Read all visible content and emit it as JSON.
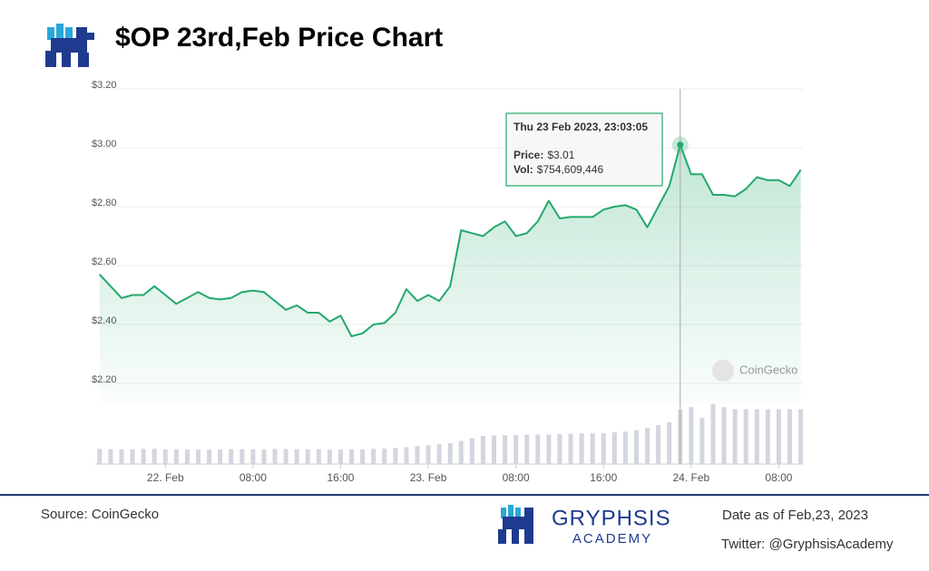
{
  "chart_data": {
    "type": "line",
    "title": "$OP 23rd,Feb Price Chart",
    "x": [
      -6,
      -5,
      -4,
      -3,
      -2,
      -1,
      0,
      1,
      2,
      3,
      4,
      5,
      6,
      7,
      8,
      9,
      10,
      11,
      12,
      13,
      14,
      15,
      16,
      17,
      18,
      19,
      20,
      21,
      22,
      23,
      24,
      25,
      26,
      27,
      28,
      29,
      30,
      31,
      32,
      33,
      34,
      35,
      36,
      37,
      38,
      39,
      40,
      41,
      42,
      43,
      44,
      45,
      46,
      47,
      48,
      49,
      50,
      51,
      52,
      53,
      54,
      55,
      56,
      57,
      58
    ],
    "values": [
      2.57,
      2.53,
      2.49,
      2.5,
      2.5,
      2.53,
      2.5,
      2.47,
      2.49,
      2.51,
      2.49,
      2.485,
      2.49,
      2.51,
      2.515,
      2.51,
      2.48,
      2.45,
      2.465,
      2.44,
      2.44,
      2.41,
      2.43,
      2.36,
      2.37,
      2.4,
      2.405,
      2.44,
      2.52,
      2.48,
      2.5,
      2.48,
      2.53,
      2.72,
      2.71,
      2.7,
      2.73,
      2.75,
      2.7,
      2.71,
      2.75,
      2.82,
      2.76,
      2.765,
      2.765,
      2.765,
      2.79,
      2.8,
      2.805,
      2.79,
      2.73,
      2.8,
      2.87,
      3.01,
      2.91,
      2.91,
      2.84,
      2.84,
      2.835,
      2.86,
      2.9,
      2.89,
      2.89,
      2.87,
      2.925
    ],
    "volume": [
      210000000,
      205000000,
      205000000,
      205000000,
      210000000,
      210000000,
      205000000,
      205000000,
      200000000,
      200000000,
      200000000,
      200000000,
      205000000,
      205000000,
      205000000,
      205000000,
      210000000,
      210000000,
      205000000,
      205000000,
      205000000,
      200000000,
      200000000,
      205000000,
      205000000,
      210000000,
      215000000,
      225000000,
      235000000,
      250000000,
      260000000,
      275000000,
      290000000,
      320000000,
      360000000,
      390000000,
      395000000,
      400000000,
      400000000,
      405000000,
      410000000,
      410000000,
      415000000,
      420000000,
      425000000,
      425000000,
      430000000,
      440000000,
      450000000,
      470000000,
      500000000,
      540000000,
      580000000,
      754609446,
      790000000,
      640000000,
      830000000,
      790000000,
      760000000,
      760000000,
      760000000,
      760000000,
      760000000,
      760000000,
      760000000
    ],
    "color": "#23a86b",
    "volume_color": "#d3d6de",
    "xlim": [
      -6.4,
      58.2
    ],
    "xticks": [
      {
        "value": 0,
        "label": "22. Feb"
      },
      {
        "value": 8,
        "label": "08:00"
      },
      {
        "value": 16,
        "label": "16:00"
      },
      {
        "value": 24,
        "label": "23. Feb"
      },
      {
        "value": 32,
        "label": "08:00"
      },
      {
        "value": 40,
        "label": "16:00"
      },
      {
        "value": 48,
        "label": "24. Feb"
      },
      {
        "value": 56,
        "label": "08:00"
      }
    ],
    "ylim": [
      2.2,
      3.2
    ],
    "yticks": [
      {
        "value": 2.2,
        "label": "$2.20"
      },
      {
        "value": 2.4,
        "label": "$2.40"
      },
      {
        "value": 2.6,
        "label": "$2.60"
      },
      {
        "value": 2.8,
        "label": "$2.80"
      },
      {
        "value": 3.0,
        "label": "$3.00"
      },
      {
        "value": 3.2,
        "label": "$3.20"
      }
    ],
    "grid": true,
    "watermark": "CoinGecko",
    "tooltip": {
      "title": "Thu 23 Feb 2023, 23:03:05",
      "items": [
        {
          "name": "Price:",
          "value": "$3.01"
        },
        {
          "name": "Vol:",
          "value": "$754,609,446"
        }
      ]
    }
  },
  "footer": {
    "source": "Source: CoinGecko",
    "brand": "GRYPHSIS",
    "brand_sub": "ACADEMY",
    "date": "Date as of Feb,23, 2023",
    "twitter": "Twitter: @GryphsisAcademy"
  }
}
